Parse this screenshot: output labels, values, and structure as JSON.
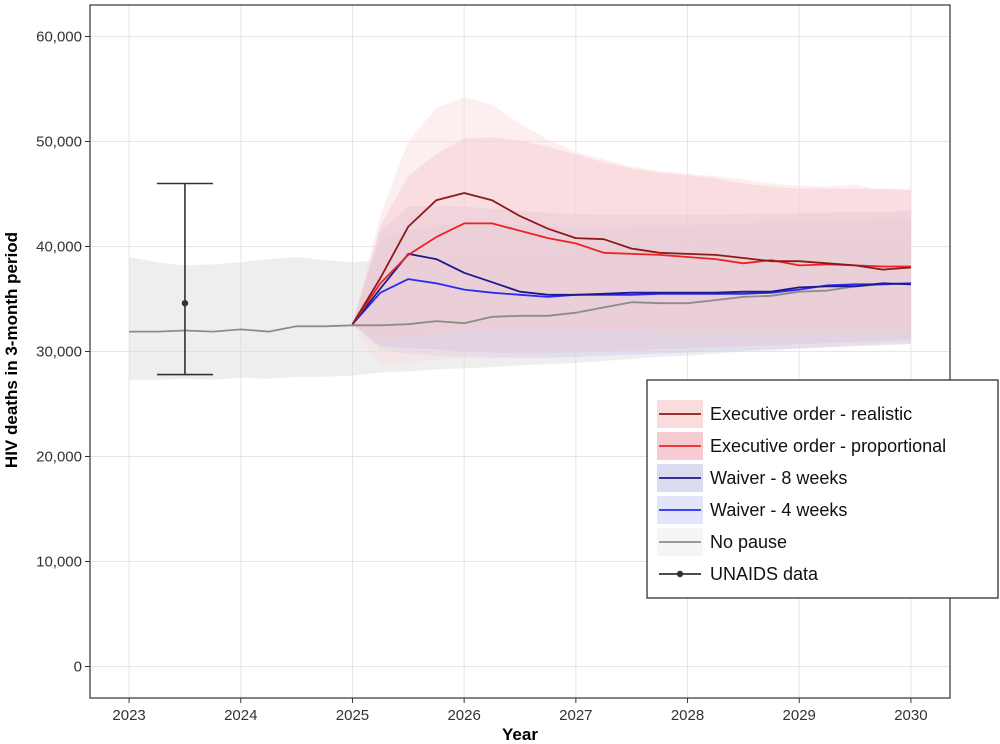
{
  "chart_data": {
    "type": "line",
    "title": "",
    "xlabel": "Year",
    "ylabel": "HIV deaths in 3-month period",
    "xlim": [
      2022.65,
      2030.35
    ],
    "ylim": [
      -3000,
      63000
    ],
    "x_ticks": [
      2023,
      2024,
      2025,
      2026,
      2027,
      2028,
      2029,
      2030
    ],
    "x_tick_labels": [
      "2023",
      "2024",
      "2025",
      "2026",
      "2027",
      "2028",
      "2029",
      "2030"
    ],
    "y_ticks": [
      0,
      10000,
      20000,
      30000,
      40000,
      50000,
      60000
    ],
    "y_tick_labels": [
      "0",
      "10,000",
      "20,000",
      "30,000",
      "40,000",
      "50,000",
      "60,000"
    ],
    "grid": true,
    "legend_position": "bottom-right",
    "series": [
      {
        "name": "No pause",
        "color": "#8c8c8c",
        "band_color": "#d9d9d9",
        "x": [
          2023,
          2023.25,
          2023.5,
          2023.75,
          2024,
          2024.25,
          2024.5,
          2024.75,
          2025,
          2025.25,
          2025.5,
          2025.75,
          2026,
          2026.25,
          2026.5,
          2026.75,
          2027,
          2027.25,
          2027.5,
          2027.75,
          2028,
          2028.25,
          2028.5,
          2028.75,
          2029,
          2029.25,
          2029.5,
          2029.75,
          2030
        ],
        "values": [
          31900,
          31900,
          32000,
          31900,
          32100,
          31900,
          32400,
          32400,
          32500,
          32500,
          32600,
          32900,
          32700,
          33300,
          33400,
          33400,
          33700,
          34200,
          34700,
          34600,
          34600,
          34900,
          35200,
          35300,
          35700,
          35800,
          36200,
          36400,
          36500
        ],
        "lower": [
          27300,
          27300,
          27400,
          27300,
          27500,
          27400,
          27600,
          27600,
          27700,
          28000,
          28100,
          28300,
          28400,
          28500,
          28700,
          28800,
          28900,
          29100,
          29300,
          29500,
          29600,
          29800,
          30000,
          30100,
          30300,
          30400,
          30600,
          30700,
          30800
        ],
        "upper": [
          39000,
          38500,
          38200,
          38300,
          38500,
          38800,
          39000,
          38700,
          38500,
          38700,
          38900,
          39000,
          39200,
          39300,
          39400,
          39500,
          39700,
          39900,
          40100,
          40200,
          40300,
          40500,
          40600,
          40700,
          40800,
          40900,
          41000,
          41100,
          41200
        ]
      },
      {
        "name": "Waiver - 4 weeks",
        "color": "#2b2bf0",
        "band_color": "#c9cdf5",
        "x": [
          2025,
          2025.25,
          2025.5,
          2025.75,
          2026,
          2026.25,
          2026.5,
          2026.75,
          2027,
          2027.25,
          2027.5,
          2027.75,
          2028,
          2028.25,
          2028.5,
          2028.75,
          2029,
          2029.25,
          2029.5,
          2029.75,
          2030
        ],
        "values": [
          32600,
          35600,
          36900,
          36500,
          35900,
          35600,
          35400,
          35200,
          35400,
          35400,
          35400,
          35500,
          35500,
          35500,
          35500,
          35600,
          35900,
          36300,
          36400,
          36400,
          36500
        ],
        "lower": [
          32600,
          30200,
          29800,
          29600,
          29500,
          29400,
          29400,
          29400,
          29500,
          29600,
          29700,
          29800,
          29900,
          30000,
          30100,
          30200,
          30300,
          30400,
          30500,
          30600,
          30700
        ],
        "upper": [
          32600,
          40600,
          41600,
          42000,
          42200,
          42200,
          42100,
          41900,
          41800,
          41800,
          41900,
          42000,
          42000,
          42100,
          42200,
          42300,
          42400,
          42500,
          42600,
          42700,
          42800
        ]
      },
      {
        "name": "Waiver - 8 weeks",
        "color": "#1a1a8c",
        "band_color": "#b7b7dc",
        "x": [
          2025,
          2025.25,
          2025.5,
          2025.75,
          2026,
          2026.25,
          2026.5,
          2026.75,
          2027,
          2027.25,
          2027.5,
          2027.75,
          2028,
          2028.25,
          2028.5,
          2028.75,
          2029,
          2029.25,
          2029.5,
          2029.75,
          2030
        ],
        "values": [
          32600,
          36000,
          39300,
          38800,
          37500,
          36600,
          35700,
          35400,
          35400,
          35500,
          35600,
          35600,
          35600,
          35600,
          35700,
          35700,
          36100,
          36200,
          36200,
          36500,
          36400
        ],
        "lower": [
          32600,
          30500,
          30300,
          30200,
          30000,
          29900,
          29800,
          29800,
          29900,
          30000,
          30100,
          30200,
          30300,
          30400,
          30500,
          30600,
          30700,
          30800,
          30900,
          31000,
          31100
        ],
        "upper": [
          32600,
          41500,
          43800,
          43900,
          43800,
          43600,
          43400,
          43200,
          43100,
          43000,
          43000,
          43000,
          43000,
          43000,
          43100,
          43100,
          43200,
          43200,
          43300,
          43300,
          43400
        ]
      },
      {
        "name": "Executive order - proportional",
        "color": "#ee2222",
        "band_color": "#f2b8c2",
        "x": [
          2025,
          2025.25,
          2025.5,
          2025.75,
          2026,
          2026.25,
          2026.5,
          2026.75,
          2027,
          2027.25,
          2027.5,
          2027.75,
          2028,
          2028.25,
          2028.5,
          2028.75,
          2029,
          2029.25,
          2029.5,
          2029.75,
          2030
        ],
        "values": [
          32600,
          36500,
          39200,
          40900,
          42200,
          42200,
          41500,
          40800,
          40300,
          39400,
          39300,
          39200,
          39000,
          38800,
          38400,
          38700,
          38200,
          38300,
          38200,
          38100,
          38100
        ],
        "lower": [
          32600,
          31000,
          31500,
          31700,
          31900,
          32000,
          32000,
          32000,
          32000,
          31900,
          31900,
          31800,
          31800,
          31800,
          31800,
          31800,
          31800,
          31800,
          31800,
          31800,
          31800
        ],
        "upper": [
          32600,
          42000,
          46700,
          48800,
          50300,
          50400,
          50100,
          49500,
          48800,
          48000,
          47400,
          47000,
          46800,
          46500,
          46000,
          45700,
          45500,
          45500,
          45500,
          45500,
          45400
        ]
      },
      {
        "name": "Executive order - realistic",
        "color": "#8b1a1a",
        "band_color": "#fbdcdc",
        "x": [
          2025,
          2025.25,
          2025.5,
          2025.75,
          2026,
          2026.25,
          2026.5,
          2026.75,
          2027,
          2027.25,
          2027.5,
          2027.75,
          2028,
          2028.25,
          2028.5,
          2028.75,
          2029,
          2029.25,
          2029.5,
          2029.75,
          2030
        ],
        "values": [
          32600,
          37000,
          41900,
          44400,
          45100,
          44400,
          42900,
          41700,
          40800,
          40700,
          39800,
          39400,
          39300,
          39200,
          38900,
          38600,
          38600,
          38400,
          38200,
          37800,
          38000
        ],
        "lower": [
          32600,
          28600,
          29000,
          29200,
          29400,
          29500,
          29600,
          29700,
          29800,
          29900,
          30000,
          30100,
          30200,
          30300,
          30400,
          30500,
          30500,
          30600,
          30600,
          30700,
          30700
        ],
        "upper": [
          32600,
          43000,
          50000,
          53200,
          54200,
          53500,
          51700,
          50200,
          49000,
          48300,
          47600,
          47200,
          46900,
          46700,
          46400,
          46000,
          45800,
          45700,
          45900,
          45300,
          45100
        ]
      }
    ],
    "unaids_data": {
      "name": "UNAIDS data",
      "color": "#333333",
      "x": 2023.5,
      "value": 34600,
      "lower": 27800,
      "upper": 46000
    },
    "legend_entries": [
      {
        "label": "Executive order - realistic",
        "line_color": "#8b1a1a",
        "fill_color": "#fbdcdc",
        "marker": false
      },
      {
        "label": "Executive order - proportional",
        "line_color": "#ee2222",
        "fill_color": "#f6cbd2",
        "marker": false
      },
      {
        "label": "Waiver - 8 weeks",
        "line_color": "#1a1a8c",
        "fill_color": "#dcdcf0",
        "marker": false
      },
      {
        "label": "Waiver - 4 weeks",
        "line_color": "#2b2bf0",
        "fill_color": "#e3e5fa",
        "marker": false
      },
      {
        "label": "No pause",
        "line_color": "#8c8c8c",
        "fill_color": "#f5f5f5",
        "marker": false
      },
      {
        "label": "UNAIDS data",
        "line_color": "#333333",
        "fill_color": "#ffffff",
        "marker": true
      }
    ]
  }
}
